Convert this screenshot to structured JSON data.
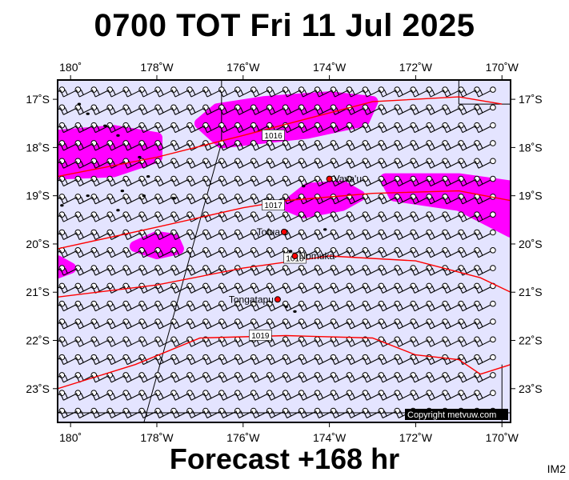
{
  "title": "0700 TOT Fri 11 Jul 2025",
  "footer": "Forecast +168 hr",
  "image_id": "IM2",
  "copyright": "Copyright metvuw.com",
  "colors": {
    "ocean": "#e4e4ff",
    "isobar": "#ff0000",
    "strong_wind": "#ff00ff",
    "place_marker": "#ff0000",
    "frame": "#000000"
  },
  "map": {
    "lon_min": -180.3,
    "lon_max": -169.8,
    "lat_min": -23.7,
    "lat_max": -16.6,
    "lon_ticks": [
      {
        "value": -180,
        "label": "180˚"
      },
      {
        "value": -178,
        "label": "178˚W"
      },
      {
        "value": -176,
        "label": "176˚W"
      },
      {
        "value": -174,
        "label": "174˚W"
      },
      {
        "value": -172,
        "label": "172˚W"
      },
      {
        "value": -170,
        "label": "170˚W"
      }
    ],
    "lat_ticks": [
      {
        "value": -17,
        "label": "17˚S"
      },
      {
        "value": -18,
        "label": "18˚S"
      },
      {
        "value": -19,
        "label": "19˚S"
      },
      {
        "value": -20,
        "label": "20˚S"
      },
      {
        "value": -21,
        "label": "21˚S"
      },
      {
        "value": -22,
        "label": "22˚S"
      },
      {
        "value": -23,
        "label": "23˚S"
      }
    ]
  },
  "places": [
    {
      "name": "Vava'u",
      "lon": -174.0,
      "lat": -18.65
    },
    {
      "name": "Tofua",
      "lon": -175.05,
      "lat": -19.75
    },
    {
      "name": "Nomuka",
      "lon": -174.8,
      "lat": -20.25
    },
    {
      "name": "Tongatapu",
      "lon": -175.2,
      "lat": -21.15
    }
  ],
  "isobars": [
    {
      "label": "1016",
      "lon": -175.3,
      "lat": -17.75,
      "points": [
        [
          -170,
          -17.1
        ],
        [
          -171,
          -16.95
        ],
        [
          -173,
          -17.05
        ],
        [
          -176,
          -17.75
        ],
        [
          -178,
          -18.2
        ],
        [
          -180.3,
          -18.6
        ]
      ]
    },
    {
      "label": "1017",
      "lon": -175.3,
      "lat": -19.2,
      "points": [
        [
          -169.8,
          -19.1
        ],
        [
          -171,
          -18.9
        ],
        [
          -173,
          -18.95
        ],
        [
          -175,
          -19.1
        ],
        [
          -176,
          -19.25
        ],
        [
          -178,
          -19.65
        ],
        [
          -180.3,
          -20.1
        ]
      ]
    },
    {
      "label": "1018",
      "lon": -174.8,
      "lat": -20.3,
      "points": [
        [
          -169.8,
          -21.0
        ],
        [
          -170.5,
          -20.7
        ],
        [
          -172,
          -20.35
        ],
        [
          -174,
          -20.25
        ],
        [
          -176,
          -20.5
        ],
        [
          -178,
          -20.85
        ],
        [
          -180.3,
          -21.1
        ]
      ]
    },
    {
      "label": "1019",
      "lon": -175.6,
      "lat": -21.9,
      "points": [
        [
          -169.8,
          -22.5
        ],
        [
          -170.5,
          -22.7
        ],
        [
          -171,
          -22.4
        ],
        [
          -172,
          -22.3
        ],
        [
          -173,
          -21.95
        ],
        [
          -175,
          -21.9
        ],
        [
          -177,
          -21.95
        ],
        [
          -178.5,
          -22.5
        ],
        [
          -180.3,
          -23.0
        ]
      ]
    }
  ],
  "strong_wind_areas": [
    [
      [
        -176.6,
        -17.2
      ],
      [
        -175.5,
        -17.05
      ],
      [
        -174,
        -16.95
      ],
      [
        -173.0,
        -17.05
      ],
      [
        -173.2,
        -17.45
      ],
      [
        -174.5,
        -17.7
      ],
      [
        -176.5,
        -17.9
      ],
      [
        -177.0,
        -17.5
      ]
    ],
    [
      [
        -180.3,
        -17.75
      ],
      [
        -179,
        -17.65
      ],
      [
        -178.0,
        -17.8
      ],
      [
        -178.0,
        -18.2
      ],
      [
        -179,
        -18.5
      ],
      [
        -180.3,
        -18.55
      ]
    ],
    [
      [
        -174.5,
        -18.85
      ],
      [
        -173.7,
        -18.8
      ],
      [
        -173.3,
        -19.0
      ],
      [
        -173.7,
        -19.2
      ],
      [
        -174.6,
        -19.35
      ],
      [
        -175.0,
        -19.2
      ]
    ],
    [
      [
        -172.7,
        -18.65
      ],
      [
        -171,
        -18.65
      ],
      [
        -169.8,
        -18.8
      ],
      [
        -169.8,
        -19.75
      ],
      [
        -171,
        -19.2
      ],
      [
        -172.5,
        -19.0
      ]
    ],
    [
      [
        -178.0,
        -19.85
      ],
      [
        -177.6,
        -19.9
      ],
      [
        -177.5,
        -20.1
      ],
      [
        -178.0,
        -20.2
      ],
      [
        -178.5,
        -20.05
      ]
    ],
    [
      [
        -180.3,
        -20.35
      ],
      [
        -180.0,
        -20.5
      ],
      [
        -180.3,
        -20.6
      ]
    ]
  ]
}
